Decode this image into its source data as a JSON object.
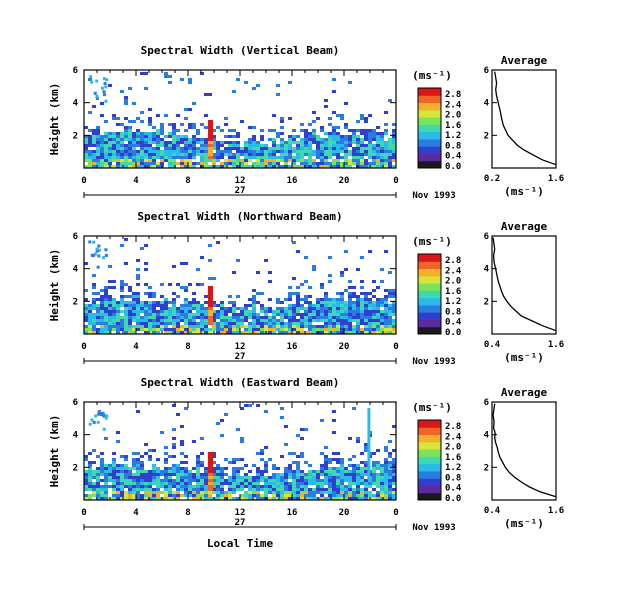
{
  "figure": {
    "xlabel": "Local Time",
    "ylabel": "Height (km)",
    "unit_label": "(ms⁻¹)",
    "avg_title": "Average",
    "avg_xlabel": "(ms⁻¹)"
  },
  "colors": {
    "palette": [
      "#1a1a1a",
      "#5a2ca0",
      "#2f3fd0",
      "#2a7de0",
      "#2bbbe8",
      "#3fd9b0",
      "#7be35a",
      "#d9e43a",
      "#f5b02a",
      "#f0642a",
      "#d81818"
    ]
  },
  "chart_data": [
    {
      "type": "heatmap",
      "title": "Spectral Width (Vertical Beam)",
      "xlabel": "Local Time",
      "ylabel": "Height (km)",
      "x_ticks": [
        "0",
        "4",
        "8",
        "12",
        "16",
        "20",
        "0"
      ],
      "y_ticks": [
        "6",
        "4",
        "2"
      ],
      "xlim": [
        0,
        24
      ],
      "ylim": [
        0,
        6
      ],
      "date_label": "27",
      "month_label": "Nov 1993",
      "colorbar": {
        "label": "(ms⁻¹)",
        "ticks": [
          "2.8",
          "2.4",
          "2.0",
          "1.6",
          "1.2",
          "0.8",
          "0.4",
          "0.0"
        ],
        "range": [
          0,
          2.8
        ]
      },
      "profile": {
        "title": "Average",
        "xlabel": "(ms⁻¹)",
        "x_ticks": [
          "0.2",
          "1.6"
        ],
        "y_ticks": [
          "6",
          "4",
          "2"
        ],
        "xlim": [
          0.2,
          1.6
        ],
        "ylim": [
          0,
          6
        ],
        "x": [
          1.6,
          1.3,
          1.1,
          0.9,
          0.75,
          0.65,
          0.55,
          0.5,
          0.45,
          0.42,
          0.4,
          0.38,
          0.35,
          0.33,
          0.3,
          0.28,
          0.3,
          0.26
        ],
        "y": [
          0.2,
          0.5,
          0.8,
          1.1,
          1.4,
          1.7,
          2.0,
          2.3,
          2.6,
          2.9,
          3.2,
          3.5,
          3.8,
          4.1,
          4.4,
          4.8,
          5.2,
          5.9
        ]
      }
    },
    {
      "type": "heatmap",
      "title": "Spectral Width (Northward Beam)",
      "xlabel": "Local Time",
      "ylabel": "Height (km)",
      "x_ticks": [
        "0",
        "4",
        "8",
        "12",
        "16",
        "20",
        "0"
      ],
      "y_ticks": [
        "6",
        "4",
        "2"
      ],
      "xlim": [
        0,
        24
      ],
      "ylim": [
        0,
        6
      ],
      "date_label": "27",
      "month_label": "Nov 1993",
      "colorbar": {
        "label": "(ms⁻¹)",
        "ticks": [
          "2.8",
          "2.4",
          "2.0",
          "1.6",
          "1.2",
          "0.8",
          "0.4",
          "0.0"
        ],
        "range": [
          0,
          2.8
        ]
      },
      "profile": {
        "title": "Average",
        "xlabel": "(ms⁻¹)",
        "x_ticks": [
          "0.4",
          "1.6"
        ],
        "y_ticks": [
          "6",
          "4",
          "2"
        ],
        "xlim": [
          0.4,
          1.6
        ],
        "ylim": [
          0,
          6
        ],
        "x": [
          1.6,
          1.35,
          1.15,
          0.95,
          0.85,
          0.75,
          0.68,
          0.62,
          0.58,
          0.55,
          0.52,
          0.5,
          0.48,
          0.46,
          0.44,
          0.43,
          0.45,
          0.42
        ],
        "y": [
          0.2,
          0.5,
          0.8,
          1.1,
          1.4,
          1.7,
          2.0,
          2.3,
          2.6,
          2.9,
          3.2,
          3.5,
          3.8,
          4.1,
          4.4,
          4.8,
          5.2,
          5.9
        ]
      }
    },
    {
      "type": "heatmap",
      "title": "Spectral Width (Eastward Beam)",
      "xlabel": "Local Time",
      "ylabel": "Height (km)",
      "x_ticks": [
        "0",
        "4",
        "8",
        "12",
        "16",
        "20",
        "0"
      ],
      "y_ticks": [
        "6",
        "4",
        "2"
      ],
      "xlim": [
        0,
        24
      ],
      "ylim": [
        0,
        6
      ],
      "date_label": "27",
      "month_label": "Nov 1993",
      "colorbar": {
        "label": "(ms⁻¹)",
        "ticks": [
          "2.8",
          "2.4",
          "2.0",
          "1.6",
          "1.2",
          "0.8",
          "0.4",
          "0.0"
        ],
        "range": [
          0,
          2.8
        ]
      },
      "profile": {
        "title": "Average",
        "xlabel": "(ms⁻¹)",
        "x_ticks": [
          "0.4",
          "1.6"
        ],
        "y_ticks": [
          "6",
          "4",
          "2"
        ],
        "xlim": [
          0.4,
          1.6
        ],
        "ylim": [
          0,
          6
        ],
        "x": [
          1.6,
          1.3,
          1.1,
          0.95,
          0.82,
          0.72,
          0.65,
          0.6,
          0.55,
          0.52,
          0.5,
          0.47,
          0.45,
          0.46,
          0.43,
          0.44,
          0.42,
          0.45
        ],
        "y": [
          0.2,
          0.5,
          0.8,
          1.1,
          1.4,
          1.7,
          2.0,
          2.3,
          2.6,
          2.9,
          3.2,
          3.5,
          3.8,
          4.1,
          4.4,
          4.8,
          5.2,
          5.9
        ]
      }
    }
  ]
}
